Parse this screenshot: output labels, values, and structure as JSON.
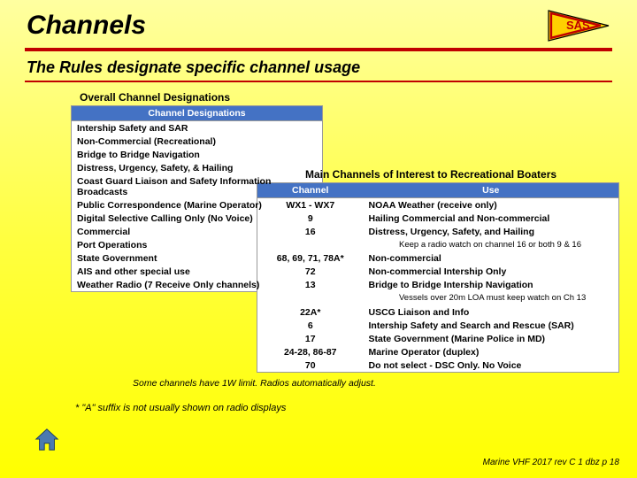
{
  "title": "Channels",
  "subtitle": "The Rules designate specific channel usage",
  "colors": {
    "accent_rule": "#c00000",
    "table_header_bg": "#4472c4",
    "table_header_fg": "#ffffff",
    "flag_yellow": "#ffd000",
    "flag_red": "#c00000"
  },
  "label_left": "Overall Channel Designations",
  "table1": {
    "header": "Channel Designations",
    "rows": [
      "Intership Safety and SAR",
      "Non-Commercial (Recreational)",
      "Bridge to Bridge Navigation",
      "Distress, Urgency, Safety, & Hailing",
      "Coast Guard Liaison and Safety Information Broadcasts",
      "Public Correspondence (Marine Operator)",
      "Digital Selective Calling Only (No Voice)",
      "Commercial",
      "Port Operations",
      "State Government",
      "AIS and other special use",
      "Weather Radio (7 Receive Only channels)"
    ]
  },
  "label_right": "Main Channels of Interest to Recreational Boaters",
  "table2": {
    "col_channel": "Channel",
    "col_use": "Use",
    "rows": [
      {
        "ch": "WX1 - WX7",
        "use": "NOAA Weather (receive only)"
      },
      {
        "ch": "9",
        "use": "Hailing Commercial and Non-commercial"
      },
      {
        "ch": "16",
        "use": "Distress, Urgency, Safety, and Hailing"
      },
      {
        "note": "Keep a radio watch on channel 16 or both 9 & 16"
      },
      {
        "ch": "68, 69, 71, 78A*",
        "use": "Non-commercial"
      },
      {
        "ch": "72",
        "use": "Non-commercial Intership Only"
      },
      {
        "ch": "13",
        "use": "Bridge to Bridge Intership Navigation"
      },
      {
        "note": "Vessels over 20m LOA must keep watch on Ch 13"
      },
      {
        "ch": "22A*",
        "use": "USCG Liaison and Info"
      },
      {
        "ch": "6",
        "use": "Intership Safety and Search and Rescue (SAR)"
      },
      {
        "ch": "17",
        "use": "State Government (Marine Police in MD)"
      },
      {
        "ch": "24-28, 86-87",
        "use": "Marine Operator (duplex)"
      },
      {
        "ch": "70",
        "use": "Do not select - DSC Only.  No Voice"
      }
    ]
  },
  "foot1": "Some channels have 1W limit.  Radios automatically adjust.",
  "foot2": "* \"A\" suffix is not usually shown on radio displays",
  "pagefoot": "Marine VHF 2017 rev C 1   dbz p 18",
  "flag_text": "SAS"
}
